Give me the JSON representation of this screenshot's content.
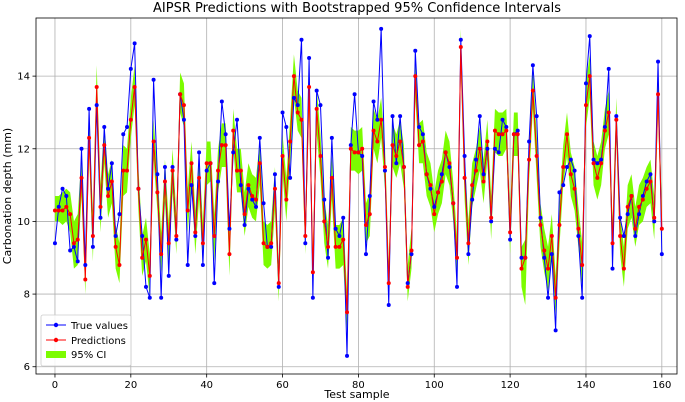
{
  "chart_data": {
    "type": "line",
    "title": "AIPSR Predictions with Bootstrapped 95% Confidence Intervals",
    "xlabel": "Test sample",
    "ylabel": "Carbonation depth (mm)",
    "xlim": [
      -5,
      164
    ],
    "ylim": [
      5.8,
      15.6
    ],
    "xticks": [
      0,
      20,
      40,
      60,
      80,
      100,
      120,
      140,
      160
    ],
    "yticks": [
      6,
      8,
      10,
      12,
      14
    ],
    "grid": true,
    "legend_position": "lower-left",
    "colors": {
      "true": "#0000ff",
      "pred": "#ff0000",
      "ci": "#7cfc00"
    },
    "series": [
      {
        "name": "True values",
        "values": [
          9.4,
          10.4,
          10.9,
          10.7,
          9.2,
          9.3,
          8.9,
          12.0,
          8.8,
          13.1,
          9.3,
          13.2,
          10.1,
          12.6,
          10.9,
          11.6,
          9.6,
          10.2,
          12.4,
          12.6,
          14.2,
          14.9,
          10.9,
          9.6,
          8.2,
          7.9,
          13.9,
          11.3,
          7.9,
          11.5,
          8.5,
          11.5,
          9.5,
          13.5,
          12.8,
          8.8,
          11.0,
          9.6,
          11.9,
          8.8,
          11.4,
          11.6,
          8.3,
          11.1,
          13.3,
          12.4,
          9.8,
          11.9,
          12.8,
          11.0,
          9.9,
          10.9,
          10.6,
          10.4,
          12.3,
          10.5,
          9.3,
          9.3,
          11.3,
          8.2,
          13.0,
          12.6,
          11.2,
          13.4,
          13.2,
          15.0,
          9.4,
          14.5,
          7.9,
          13.6,
          13.2,
          10.6,
          9.0,
          12.3,
          9.8,
          9.6,
          10.1,
          6.3,
          12.1,
          13.5,
          11.9,
          11.8,
          9.1,
          10.7,
          13.3,
          12.8,
          15.3,
          11.4,
          7.7,
          12.9,
          11.6,
          12.9,
          11.5,
          8.3,
          9.1,
          14.7,
          12.6,
          12.4,
          11.3,
          10.9,
          10.4,
          10.8,
          11.3,
          11.9,
          11.5,
          10.5,
          8.2,
          15.0,
          11.8,
          9.1,
          10.6,
          11.7,
          12.9,
          11.3,
          12.0,
          10.0,
          12.0,
          11.9,
          12.8,
          12.6,
          9.5,
          12.4,
          12.5,
          9.0,
          9.0,
          12.2,
          14.3,
          12.9,
          10.1,
          9.0,
          7.9,
          9.1,
          7.0,
          10.8,
          11.0,
          11.5,
          11.7,
          11.4,
          9.6,
          7.9,
          13.8,
          15.1,
          11.7,
          11.6,
          11.7,
          12.6,
          14.2,
          8.7,
          12.9,
          10.1,
          9.6,
          10.2,
          10.7,
          9.6,
          10.2,
          10.7,
          11.1,
          11.3,
          10.0,
          14.4,
          9.1
        ]
      },
      {
        "name": "Predictions",
        "values": [
          10.3,
          10.3,
          10.3,
          10.4,
          10.2,
          9.4,
          9.5,
          11.2,
          8.4,
          12.3,
          9.6,
          13.7,
          10.4,
          12.1,
          10.7,
          11.1,
          9.3,
          8.8,
          11.4,
          11.4,
          12.8,
          13.7,
          10.9,
          9.0,
          9.5,
          8.5,
          12.2,
          10.8,
          9.1,
          11.1,
          9.4,
          11.4,
          9.6,
          13.5,
          13.2,
          10.3,
          11.6,
          9.7,
          11.2,
          9.4,
          11.6,
          11.6,
          9.6,
          11.4,
          12.1,
          12.1,
          9.1,
          12.5,
          11.4,
          11.4,
          10.2,
          11.0,
          10.7,
          10.6,
          11.6,
          9.4,
          9.3,
          9.4,
          10.9,
          8.3,
          11.8,
          10.6,
          12.2,
          14.0,
          13.0,
          12.8,
          9.6,
          13.7,
          8.6,
          13.1,
          11.8,
          10.0,
          9.3,
          11.2,
          9.3,
          9.3,
          9.5,
          7.5,
          12.0,
          11.9,
          11.9,
          12.0,
          9.9,
          10.2,
          12.5,
          12.2,
          12.8,
          11.5,
          8.3,
          12.1,
          11.8,
          12.2,
          11.5,
          8.2,
          9.2,
          14.0,
          12.1,
          12.2,
          11.3,
          11.0,
          10.2,
          10.8,
          11.1,
          11.9,
          11.6,
          10.5,
          9.0,
          14.8,
          11.2,
          9.4,
          11.0,
          11.4,
          12.0,
          11.1,
          12.2,
          10.1,
          12.5,
          12.4,
          12.4,
          12.5,
          9.7,
          12.4,
          12.4,
          8.7,
          9.0,
          11.7,
          13.6,
          11.8,
          9.9,
          9.2,
          8.7,
          9.6,
          7.9,
          9.9,
          11.5,
          12.4,
          11.3,
          10.9,
          9.8,
          8.8,
          13.2,
          14.0,
          11.6,
          11.2,
          11.6,
          12.5,
          13.0,
          9.4,
          12.8,
          9.6,
          8.7,
          10.4,
          10.7,
          9.8,
          10.4,
          10.6,
          10.9,
          11.1,
          10.1,
          13.5,
          9.8
        ]
      },
      {
        "name": "95% CI",
        "lower": [
          10.0,
          10.0,
          9.9,
          10.0,
          9.7,
          8.7,
          8.8,
          10.7,
          8.0,
          11.8,
          8.9,
          13.0,
          9.7,
          11.6,
          10.1,
          10.5,
          8.7,
          8.3,
          10.7,
          10.8,
          12.3,
          13.2,
          10.3,
          8.5,
          8.9,
          7.9,
          11.7,
          10.3,
          8.6,
          10.5,
          8.8,
          10.8,
          9.1,
          13.0,
          12.6,
          9.7,
          11.1,
          9.1,
          10.6,
          8.8,
          11.0,
          11.1,
          8.9,
          10.8,
          11.5,
          11.5,
          8.5,
          12.0,
          10.8,
          10.8,
          9.6,
          10.4,
          10.1,
          10.0,
          11.0,
          8.8,
          8.7,
          8.8,
          10.3,
          7.8,
          11.3,
          10.0,
          11.6,
          13.4,
          12.5,
          12.3,
          9.1,
          13.1,
          8.0,
          12.4,
          11.2,
          9.4,
          8.7,
          10.6,
          8.7,
          8.7,
          8.8,
          7.0,
          11.4,
          11.4,
          11.3,
          11.4,
          9.4,
          9.6,
          12.0,
          11.6,
          12.3,
          10.9,
          7.8,
          11.5,
          11.2,
          11.6,
          10.9,
          7.8,
          8.7,
          13.4,
          11.6,
          11.6,
          10.7,
          10.4,
          9.7,
          10.2,
          10.5,
          11.3,
          11.0,
          10.0,
          8.5,
          14.2,
          10.6,
          8.8,
          10.4,
          10.9,
          11.4,
          10.5,
          11.7,
          9.5,
          11.9,
          11.8,
          11.8,
          12.0,
          9.1,
          11.8,
          11.8,
          8.2,
          7.7,
          11.1,
          13.1,
          11.2,
          9.3,
          8.6,
          8.1,
          9.0,
          7.4,
          9.3,
          11.0,
          11.8,
          10.7,
          10.3,
          9.3,
          8.2,
          12.6,
          13.4,
          11.0,
          10.6,
          11.0,
          12.0,
          12.4,
          8.8,
          12.2,
          9.1,
          8.2,
          9.8,
          10.1,
          9.3,
          9.9,
          10.0,
          10.4,
          10.5,
          9.5,
          13.0,
          9.3
        ],
        "upper": [
          10.7,
          10.7,
          10.8,
          10.9,
          10.8,
          10.0,
          10.2,
          11.8,
          9.0,
          12.9,
          10.3,
          14.3,
          11.0,
          12.7,
          11.3,
          11.7,
          9.9,
          9.4,
          12.1,
          12.0,
          13.4,
          14.3,
          11.5,
          9.6,
          10.1,
          9.1,
          12.8,
          11.4,
          9.7,
          11.7,
          10.0,
          12.0,
          10.2,
          14.1,
          13.8,
          10.9,
          12.2,
          10.3,
          11.8,
          10.0,
          12.2,
          12.2,
          10.2,
          12.0,
          12.7,
          12.7,
          9.7,
          13.1,
          12.0,
          12.0,
          10.8,
          11.6,
          11.3,
          11.2,
          12.2,
          10.0,
          9.9,
          10.0,
          11.5,
          8.9,
          12.4,
          11.2,
          12.8,
          14.6,
          13.6,
          13.4,
          10.2,
          14.3,
          9.2,
          13.7,
          12.4,
          10.6,
          9.9,
          11.8,
          9.9,
          9.9,
          10.1,
          8.1,
          12.6,
          12.5,
          12.5,
          12.6,
          10.5,
          10.8,
          13.1,
          12.8,
          13.4,
          12.1,
          8.9,
          12.7,
          12.4,
          12.8,
          12.1,
          8.8,
          9.8,
          14.6,
          12.7,
          12.8,
          11.9,
          11.6,
          10.8,
          11.4,
          11.7,
          12.5,
          12.2,
          11.1,
          9.6,
          15.3,
          11.8,
          10.0,
          11.6,
          12.0,
          12.6,
          11.7,
          12.8,
          10.7,
          13.1,
          13.0,
          13.0,
          13.1,
          10.3,
          13.0,
          13.0,
          9.3,
          9.5,
          12.3,
          14.2,
          12.4,
          10.5,
          9.8,
          9.3,
          10.2,
          8.5,
          10.5,
          12.1,
          13.0,
          11.9,
          11.5,
          10.4,
          9.4,
          13.8,
          14.6,
          12.2,
          11.8,
          12.2,
          13.1,
          13.6,
          10.0,
          13.4,
          10.2,
          9.3,
          11.0,
          11.3,
          10.4,
          11.0,
          11.2,
          11.5,
          11.7,
          10.7,
          14.1,
          10.4
        ]
      }
    ]
  }
}
